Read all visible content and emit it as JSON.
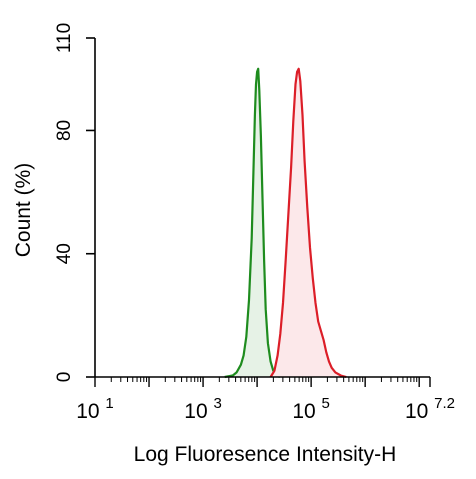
{
  "chart_data": {
    "type": "area",
    "title": "",
    "xlabel": "Log Fluoresence Intensity-H",
    "ylabel": "Count  (%)",
    "x_scale": "log10",
    "xlim_log10": [
      1,
      7.2
    ],
    "ylim": [
      0,
      110
    ],
    "y_ticks": [
      0,
      40,
      80,
      110
    ],
    "x_tick_labels": [
      {
        "base": "10",
        "exp": "1",
        "log10": 1
      },
      {
        "base": "10",
        "exp": "3",
        "log10": 3
      },
      {
        "base": "10",
        "exp": "5",
        "log10": 5
      },
      {
        "base": "10",
        "exp": "7.2",
        "log10": 7.2
      }
    ],
    "grid": false,
    "legend": "none",
    "series": [
      {
        "color": "#1e8c1e",
        "fill": "#e6f2e6",
        "points_log10_x": [
          [
            3.4,
            0
          ],
          [
            3.55,
            0.5
          ],
          [
            3.62,
            1.5
          ],
          [
            3.7,
            4
          ],
          [
            3.75,
            7
          ],
          [
            3.8,
            13
          ],
          [
            3.85,
            25
          ],
          [
            3.9,
            45
          ],
          [
            3.93,
            65
          ],
          [
            3.96,
            85
          ],
          [
            3.98,
            95
          ],
          [
            4.0,
            99
          ],
          [
            4.02,
            100
          ],
          [
            4.04,
            93
          ],
          [
            4.07,
            78
          ],
          [
            4.1,
            58
          ],
          [
            4.13,
            38
          ],
          [
            4.16,
            22
          ],
          [
            4.2,
            11
          ],
          [
            4.25,
            5
          ],
          [
            4.3,
            2
          ],
          [
            4.36,
            0.5
          ],
          [
            4.42,
            0
          ]
        ]
      },
      {
        "color": "#dc1e28",
        "fill": "#fce8ea",
        "points_log10_x": [
          [
            4.25,
            0
          ],
          [
            4.32,
            2
          ],
          [
            4.38,
            7
          ],
          [
            4.43,
            14
          ],
          [
            4.48,
            24
          ],
          [
            4.53,
            38
          ],
          [
            4.58,
            53
          ],
          [
            4.63,
            68
          ],
          [
            4.67,
            83
          ],
          [
            4.71,
            95
          ],
          [
            4.74,
            99
          ],
          [
            4.77,
            100
          ],
          [
            4.8,
            96
          ],
          [
            4.84,
            85
          ],
          [
            4.88,
            70
          ],
          [
            4.93,
            55
          ],
          [
            4.98,
            42
          ],
          [
            5.03,
            32
          ],
          [
            5.08,
            24
          ],
          [
            5.13,
            18
          ],
          [
            5.18,
            15
          ],
          [
            5.23,
            12
          ],
          [
            5.28,
            8
          ],
          [
            5.33,
            5
          ],
          [
            5.38,
            3
          ],
          [
            5.45,
            1.5
          ],
          [
            5.55,
            0.5
          ],
          [
            5.65,
            0
          ]
        ]
      }
    ]
  }
}
